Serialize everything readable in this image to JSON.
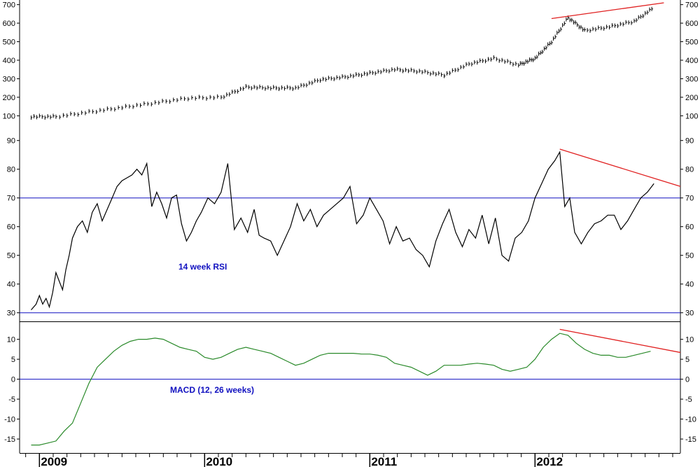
{
  "chart_data": [
    {
      "type": "line",
      "panel": "price",
      "ylim": [
        75,
        725
      ],
      "yticks": [
        100,
        200,
        300,
        400,
        500,
        600,
        700
      ],
      "ytick_labels": [
        "100",
        "200",
        "300",
        "400",
        "500",
        "600",
        "700"
      ],
      "x": [
        2008.95,
        2009.1,
        2009.3,
        2009.5,
        2009.7,
        2009.9,
        2010.1,
        2010.25,
        2010.4,
        2010.55,
        2010.7,
        2010.85,
        2011.0,
        2011.15,
        2011.3,
        2011.45,
        2011.6,
        2011.75,
        2011.9,
        2012.0,
        2012.1,
        2012.2,
        2012.3,
        2012.45,
        2012.6,
        2012.72
      ],
      "values": [
        95,
        95,
        120,
        145,
        170,
        195,
        200,
        255,
        250,
        250,
        295,
        310,
        330,
        350,
        340,
        320,
        380,
        410,
        375,
        410,
        500,
        630,
        560,
        580,
        610,
        685
      ],
      "trendline": {
        "x": [
          2012.1,
          2012.78
        ],
        "y": [
          625,
          710
        ],
        "color": "#e02020"
      }
    },
    {
      "type": "line",
      "panel": "rsi",
      "label": "14 week RSI",
      "ylim": [
        27,
        97
      ],
      "yticks": [
        30,
        40,
        50,
        60,
        70,
        80,
        90
      ],
      "ytick_labels": [
        "30",
        "40",
        "50",
        "60",
        "70",
        "80",
        "90"
      ],
      "hlines": [
        70,
        30
      ],
      "x": [
        2008.95,
        2008.98,
        2009.0,
        2009.02,
        2009.04,
        2009.06,
        2009.08,
        2009.1,
        2009.12,
        2009.14,
        2009.16,
        2009.18,
        2009.2,
        2009.23,
        2009.26,
        2009.29,
        2009.32,
        2009.35,
        2009.38,
        2009.41,
        2009.44,
        2009.47,
        2009.5,
        2009.53,
        2009.56,
        2009.59,
        2009.62,
        2009.65,
        2009.68,
        2009.71,
        2009.74,
        2009.77,
        2009.8,
        2009.83,
        2009.86,
        2009.89,
        2009.92,
        2009.95,
        2009.98,
        2010.02,
        2010.06,
        2010.1,
        2010.14,
        2010.18,
        2010.22,
        2010.26,
        2010.3,
        2010.33,
        2010.36,
        2010.4,
        2010.44,
        2010.48,
        2010.52,
        2010.56,
        2010.6,
        2010.64,
        2010.68,
        2010.72,
        2010.76,
        2010.8,
        2010.84,
        2010.88,
        2010.92,
        2010.96,
        2011.0,
        2011.04,
        2011.08,
        2011.12,
        2011.16,
        2011.2,
        2011.24,
        2011.28,
        2011.32,
        2011.36,
        2011.4,
        2011.44,
        2011.48,
        2011.52,
        2011.56,
        2011.6,
        2011.64,
        2011.68,
        2011.72,
        2011.76,
        2011.8,
        2011.84,
        2011.88,
        2011.92,
        2011.96,
        2012.0,
        2012.04,
        2012.08,
        2012.12,
        2012.15,
        2012.18,
        2012.21,
        2012.24,
        2012.28,
        2012.32,
        2012.36,
        2012.4,
        2012.44,
        2012.48,
        2012.52,
        2012.56,
        2012.6,
        2012.64,
        2012.68,
        2012.72
      ],
      "values": [
        31,
        33,
        36,
        33,
        35,
        32,
        37,
        44,
        41,
        38,
        45,
        50,
        56,
        60,
        62,
        58,
        65,
        68,
        62,
        66,
        70,
        74,
        76,
        77,
        78,
        80,
        78,
        82,
        67,
        72,
        68,
        63,
        70,
        71,
        61,
        55,
        58,
        62,
        65,
        70,
        68,
        72,
        82,
        59,
        63,
        58,
        66,
        57,
        56,
        55,
        50,
        55,
        60,
        68,
        62,
        66,
        60,
        64,
        66,
        68,
        70,
        74,
        61,
        64,
        70,
        66,
        62,
        54,
        60,
        55,
        56,
        52,
        50,
        46,
        55,
        61,
        66,
        58,
        53,
        59,
        56,
        64,
        54,
        63,
        50,
        48,
        56,
        58,
        62,
        70,
        75,
        80,
        83,
        86,
        67,
        70,
        58,
        54,
        58,
        61,
        62,
        64,
        64,
        59,
        62,
        66,
        70,
        72,
        75
      ],
      "trendline": {
        "x": [
          2012.15,
          2012.88
        ],
        "y": [
          87,
          74
        ],
        "color": "#e02020"
      }
    },
    {
      "type": "line",
      "panel": "macd",
      "label": "MACD (12, 26 weeks)",
      "ylim": [
        -18.5,
        14.5
      ],
      "yticks": [
        10,
        5,
        0,
        -5,
        -10,
        -15
      ],
      "ytick_labels": [
        "10",
        "5",
        "0",
        "-5",
        "-10",
        "-15"
      ],
      "hlines": [
        0
      ],
      "line_color": "#2a8a2a",
      "x": [
        2008.95,
        2009.0,
        2009.05,
        2009.1,
        2009.15,
        2009.2,
        2009.25,
        2009.3,
        2009.35,
        2009.4,
        2009.45,
        2009.5,
        2009.55,
        2009.6,
        2009.65,
        2009.7,
        2009.75,
        2009.8,
        2009.85,
        2009.9,
        2009.95,
        2010.0,
        2010.05,
        2010.1,
        2010.15,
        2010.2,
        2010.25,
        2010.3,
        2010.35,
        2010.4,
        2010.45,
        2010.5,
        2010.55,
        2010.6,
        2010.65,
        2010.7,
        2010.75,
        2010.8,
        2010.85,
        2010.9,
        2010.95,
        2011.0,
        2011.05,
        2011.1,
        2011.15,
        2011.2,
        2011.25,
        2011.3,
        2011.35,
        2011.4,
        2011.45,
        2011.5,
        2011.55,
        2011.6,
        2011.65,
        2011.7,
        2011.75,
        2011.8,
        2011.85,
        2011.9,
        2011.95,
        2012.0,
        2012.05,
        2012.1,
        2012.15,
        2012.2,
        2012.25,
        2012.3,
        2012.35,
        2012.4,
        2012.45,
        2012.5,
        2012.55,
        2012.6,
        2012.65,
        2012.7
      ],
      "values": [
        -16.5,
        -16.5,
        -16,
        -15.5,
        -13,
        -11,
        -6,
        -1,
        3,
        5,
        7,
        8.5,
        9.5,
        10,
        10,
        10.3,
        10,
        9,
        8,
        7.5,
        7,
        5.5,
        5,
        5.5,
        6.5,
        7.5,
        8,
        7.5,
        7,
        6.5,
        5.5,
        4.5,
        3.5,
        4,
        5,
        6,
        6.5,
        6.5,
        6.5,
        6.5,
        6.3,
        6.3,
        6,
        5.5,
        4,
        3.5,
        3,
        2,
        1,
        2,
        3.5,
        3.5,
        3.5,
        3.8,
        4,
        3.8,
        3.5,
        2.5,
        2,
        2.5,
        3,
        5,
        8,
        10,
        11.5,
        11,
        9,
        7.5,
        6.5,
        6,
        6,
        5.5,
        5.5,
        6,
        6.5,
        7
      ],
      "trendline": {
        "x": [
          2012.15,
          2012.88
        ],
        "y": [
          12.5,
          6.7
        ],
        "color": "#e02020"
      }
    }
  ],
  "x_axis": {
    "range": [
      2008.88,
      2012.88
    ],
    "years": [
      2009,
      2010,
      2011,
      2012
    ],
    "year_labels": [
      "2009",
      "2010",
      "2011",
      "2012"
    ]
  },
  "labels": {
    "rsi": "14 week RSI",
    "macd": "MACD (12, 26 weeks)"
  }
}
